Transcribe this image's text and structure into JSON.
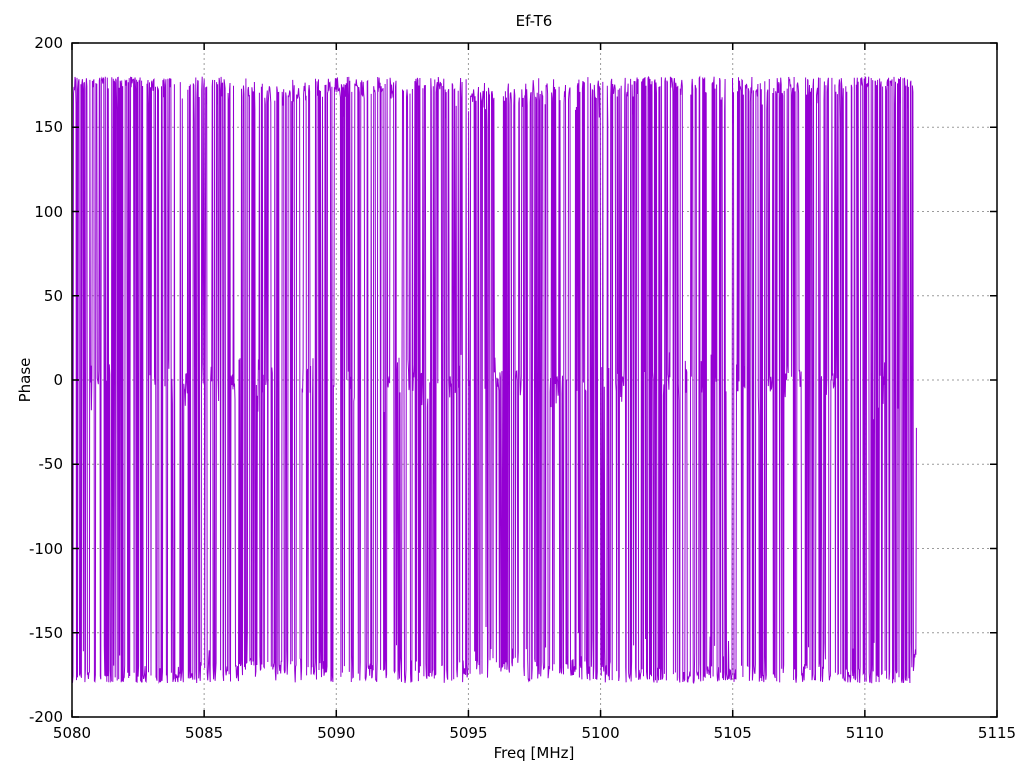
{
  "chart_data": {
    "type": "line",
    "title": "Ef-T6",
    "xlabel": "Freq [MHz]",
    "ylabel": "Phase",
    "xlim": [
      5080,
      5115
    ],
    "ylim": [
      -200,
      200
    ],
    "xticks": [
      5080,
      5085,
      5090,
      5095,
      5100,
      5105,
      5110,
      5115
    ],
    "xtick_labels": [
      "5080",
      "5085",
      "5090",
      "5095",
      "5100",
      "5105",
      "5110",
      "5115"
    ],
    "yticks": [
      200,
      150,
      100,
      50,
      0,
      -50,
      -100,
      -150,
      -200
    ],
    "ytick_labels": [
      "200",
      "150",
      "100",
      "50",
      "0",
      "-50",
      "-100",
      "-150",
      "-200"
    ],
    "grid": "dashed gray gridlines at every major tick, both axes",
    "legend": "none",
    "series": [
      {
        "name": "Ef-T6 phase",
        "color": "#9400D3",
        "x_start": 5080.0,
        "x_end": 5111.95,
        "n_points": 1700,
        "top_band_range": [
          160,
          180
        ],
        "bottom_band_range": [
          -180,
          -160
        ],
        "zero_band_range": [
          -15,
          15
        ],
        "description": "Wrapped phase in degrees: values alternate densely between a band near +160..+180 and its wrap near -160..-180, interleaved with short runs near 0; rendered as near-solid vertical purple striping across the band. Data stops near 5112 MHz; envelope dips toward ±150 at the band edge.",
        "gen": {
          "seed": 42,
          "pi_band_mean": 174,
          "pi_band_sigma": 4,
          "zero_band_sigma": 6.5,
          "p_flip_sign": 0.35,
          "p_to_zero": 0.085,
          "p_from_zero": 0.45,
          "dip_prob": 0.05,
          "end_dip_points": 20
        }
      }
    ]
  },
  "colors": {
    "trace": "#9400D3",
    "grid": "#9c9c9c",
    "axis": "#000000",
    "text": "#000000",
    "background": "#ffffff"
  }
}
